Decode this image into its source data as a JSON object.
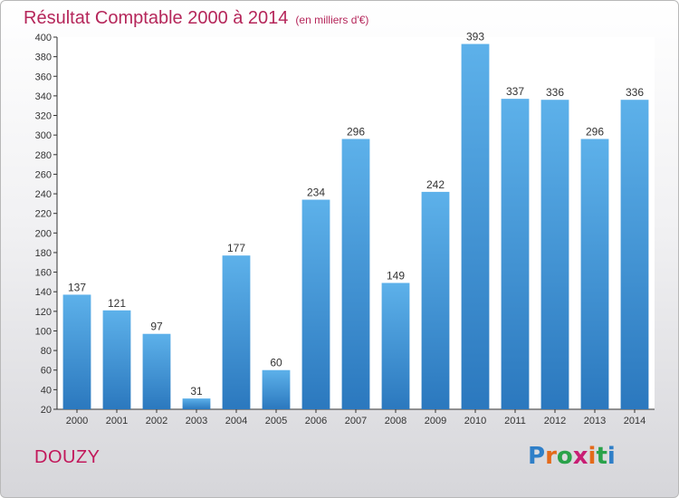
{
  "header": {
    "title": "Résultat Comptable 2000 à 2014",
    "subtitle": "(en milliers d'€)"
  },
  "footer": {
    "place": "DOUZY",
    "logo": {
      "text": "Proxiti",
      "letters": [
        "P",
        "r",
        "o",
        "x",
        "i",
        "t",
        "i"
      ],
      "colors": [
        "#2f7fc8",
        "#e46a1a",
        "#2aa24a",
        "#c81e74",
        "#e46a1a",
        "#2aa24a",
        "#2f7fc8"
      ]
    }
  },
  "chart_data": {
    "type": "bar",
    "title": "Résultat Comptable 2000 à 2014",
    "subtitle": "(en milliers d'€)",
    "categories": [
      "2000",
      "2001",
      "2002",
      "2003",
      "2004",
      "2005",
      "2006",
      "2007",
      "2008",
      "2009",
      "2010",
      "2011",
      "2012",
      "2013",
      "2014"
    ],
    "values": [
      137,
      121,
      97,
      31,
      177,
      60,
      234,
      296,
      149,
      242,
      393,
      337,
      336,
      296,
      336
    ],
    "ylim": [
      20,
      400
    ],
    "yticks": [
      20,
      40,
      60,
      80,
      100,
      120,
      140,
      160,
      180,
      200,
      220,
      240,
      260,
      280,
      300,
      320,
      340,
      360,
      380,
      400
    ],
    "grid": false,
    "bar_color": "#3f95d9"
  }
}
